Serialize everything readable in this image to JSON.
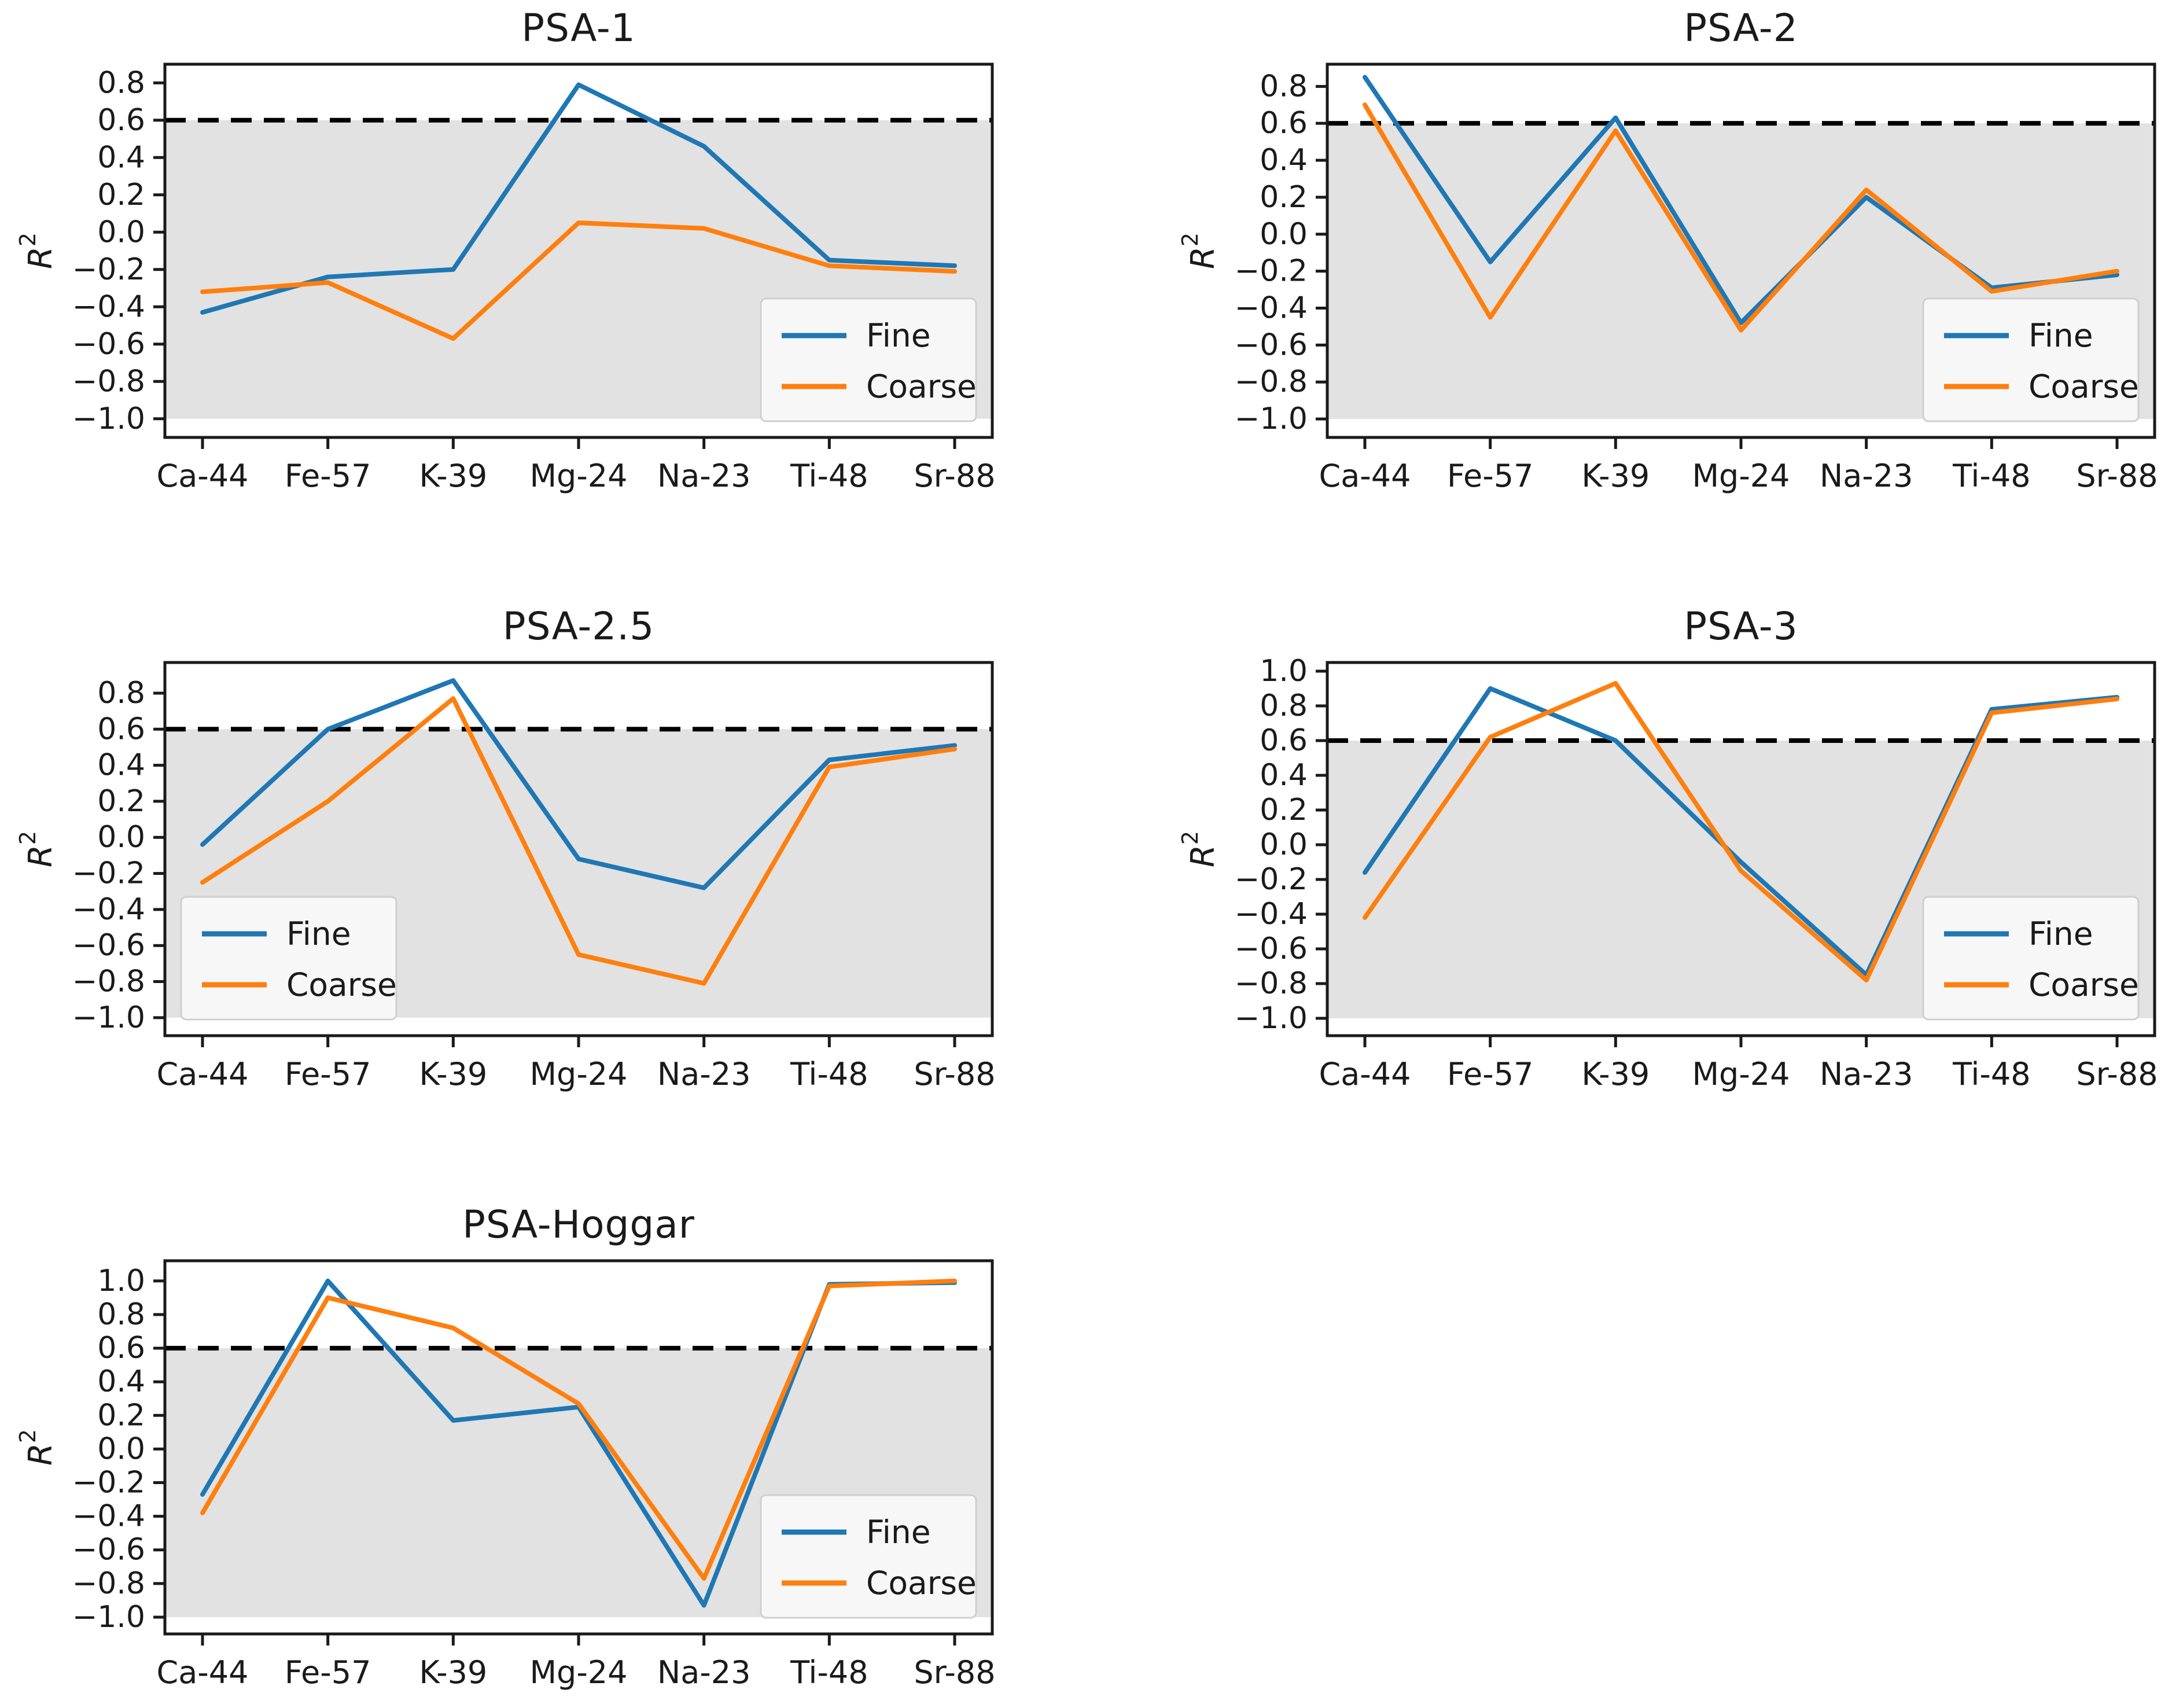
{
  "figure": {
    "ylabel": "R^2",
    "categories": [
      "Ca-44",
      "Fe-57",
      "K-39",
      "Mg-24",
      "Na-23",
      "Ti-48",
      "Sr-88"
    ],
    "legend_labels": [
      "Fine",
      "Coarse"
    ],
    "threshold_value": 0.6
  },
  "colors": {
    "fine": "#1f77b4",
    "coarse": "#ff7f0e",
    "threshold_line": "#000000",
    "shaded_region": "#e2e2e2",
    "spine": "#1a1a1a",
    "text": "#1a1a1a",
    "legend_background": "#f9f9f9",
    "legend_border": "#cfcfcf"
  },
  "chart_data": [
    {
      "type": "line",
      "title": "PSA-1",
      "xlabel": "",
      "ylabel": "R^2",
      "categories": [
        "Ca-44",
        "Fe-57",
        "K-39",
        "Mg-24",
        "Na-23",
        "Ti-48",
        "Sr-88"
      ],
      "series": [
        {
          "name": "Fine",
          "color": "#1f77b4",
          "values": [
            -0.43,
            -0.24,
            -0.2,
            0.79,
            0.46,
            -0.15,
            -0.18
          ]
        },
        {
          "name": "Coarse",
          "color": "#ff7f0e",
          "values": [
            -0.32,
            -0.27,
            -0.57,
            0.05,
            0.02,
            -0.18,
            -0.21
          ]
        }
      ],
      "threshold": 0.6,
      "shaded_region": {
        "from": -1.0,
        "to": 0.6
      },
      "yticks": [
        0.8,
        0.6,
        0.4,
        0.2,
        0.0,
        -0.2,
        -0.4,
        -0.6,
        -0.8,
        -1.0
      ],
      "ylim": [
        -1.1,
        0.9
      ],
      "grid": false,
      "legend": {
        "labels": [
          "Fine",
          "Coarse"
        ],
        "position": "lower right"
      }
    },
    {
      "type": "line",
      "title": "PSA-2",
      "xlabel": "",
      "ylabel": "R^2",
      "categories": [
        "Ca-44",
        "Fe-57",
        "K-39",
        "Mg-24",
        "Na-23",
        "Ti-48",
        "Sr-88"
      ],
      "series": [
        {
          "name": "Fine",
          "color": "#1f77b4",
          "values": [
            0.85,
            -0.15,
            0.63,
            -0.48,
            0.2,
            -0.29,
            -0.22
          ]
        },
        {
          "name": "Coarse",
          "color": "#ff7f0e",
          "values": [
            0.7,
            -0.45,
            0.56,
            -0.52,
            0.24,
            -0.31,
            -0.2
          ]
        }
      ],
      "threshold": 0.6,
      "shaded_region": {
        "from": -1.0,
        "to": 0.6
      },
      "yticks": [
        0.8,
        0.6,
        0.4,
        0.2,
        0.0,
        -0.2,
        -0.4,
        -0.6,
        -0.8,
        -1.0
      ],
      "ylim": [
        -1.1,
        0.92
      ],
      "grid": false,
      "legend": {
        "labels": [
          "Fine",
          "Coarse"
        ],
        "position": "lower right"
      }
    },
    {
      "type": "line",
      "title": "PSA-2.5",
      "xlabel": "",
      "ylabel": "R^2",
      "categories": [
        "Ca-44",
        "Fe-57",
        "K-39",
        "Mg-24",
        "Na-23",
        "Ti-48",
        "Sr-88"
      ],
      "series": [
        {
          "name": "Fine",
          "color": "#1f77b4",
          "values": [
            -0.04,
            0.6,
            0.87,
            -0.12,
            -0.28,
            0.43,
            0.51
          ]
        },
        {
          "name": "Coarse",
          "color": "#ff7f0e",
          "values": [
            -0.25,
            0.2,
            0.77,
            -0.65,
            -0.81,
            0.39,
            0.49
          ]
        }
      ],
      "threshold": 0.6,
      "shaded_region": {
        "from": -1.0,
        "to": 0.6
      },
      "yticks": [
        0.8,
        0.6,
        0.4,
        0.2,
        0.0,
        -0.2,
        -0.4,
        -0.6,
        -0.8,
        -1.0
      ],
      "ylim": [
        -1.1,
        0.97
      ],
      "grid": false,
      "legend": {
        "labels": [
          "Fine",
          "Coarse"
        ],
        "position": "lower left"
      }
    },
    {
      "type": "line",
      "title": "PSA-3",
      "xlabel": "",
      "ylabel": "R^2",
      "categories": [
        "Ca-44",
        "Fe-57",
        "K-39",
        "Mg-24",
        "Na-23",
        "Ti-48",
        "Sr-88"
      ],
      "series": [
        {
          "name": "Fine",
          "color": "#1f77b4",
          "values": [
            -0.16,
            0.9,
            0.6,
            -0.1,
            -0.75,
            0.78,
            0.85
          ]
        },
        {
          "name": "Coarse",
          "color": "#ff7f0e",
          "values": [
            -0.42,
            0.62,
            0.93,
            -0.15,
            -0.78,
            0.76,
            0.84
          ]
        }
      ],
      "threshold": 0.6,
      "shaded_region": {
        "from": -1.0,
        "to": 0.6
      },
      "yticks": [
        1.0,
        0.8,
        0.6,
        0.4,
        0.2,
        0.0,
        -0.2,
        -0.4,
        -0.6,
        -0.8,
        -1.0
      ],
      "ylim": [
        -1.1,
        1.05
      ],
      "grid": false,
      "legend": {
        "labels": [
          "Fine",
          "Coarse"
        ],
        "position": "lower right"
      }
    },
    {
      "type": "line",
      "title": "PSA-Hoggar",
      "xlabel": "",
      "ylabel": "R^2",
      "categories": [
        "Ca-44",
        "Fe-57",
        "K-39",
        "Mg-24",
        "Na-23",
        "Ti-48",
        "Sr-88"
      ],
      "series": [
        {
          "name": "Fine",
          "color": "#1f77b4",
          "values": [
            -0.27,
            1.0,
            0.17,
            0.25,
            -0.93,
            0.98,
            0.99
          ]
        },
        {
          "name": "Coarse",
          "color": "#ff7f0e",
          "values": [
            -0.38,
            0.9,
            0.72,
            0.27,
            -0.77,
            0.97,
            1.0
          ]
        }
      ],
      "threshold": 0.6,
      "shaded_region": {
        "from": -1.0,
        "to": 0.6
      },
      "yticks": [
        1.0,
        0.8,
        0.6,
        0.4,
        0.2,
        0.0,
        -0.2,
        -0.4,
        -0.6,
        -0.8,
        -1.0
      ],
      "ylim": [
        -1.1,
        1.12
      ],
      "grid": false,
      "legend": {
        "labels": [
          "Fine",
          "Coarse"
        ],
        "position": "lower right"
      }
    }
  ]
}
